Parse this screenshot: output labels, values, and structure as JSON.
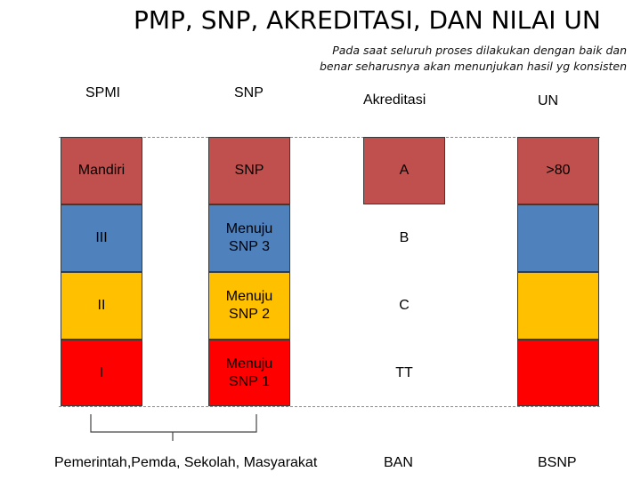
{
  "title": "PMP, SNP, AKREDITASI, DAN NILAI UN",
  "subtitle_line1": "Pada saat seluruh proses dilakukan dengan baik dan",
  "subtitle_line2": "benar seharusnya akan menunjukan hasil yg konsisten",
  "headers": {
    "spmi": "SPMI",
    "snp": "SNP",
    "akreditasi": "Akreditasi",
    "un": "UN"
  },
  "spmi": [
    "Mandiri",
    "III",
    "II",
    "I"
  ],
  "snp": [
    "SNP",
    "Menuju SNP 3",
    "Menuju SNP 2",
    "Menuju SNP 1"
  ],
  "akreditasi": [
    "A",
    "B",
    "C",
    "TT"
  ],
  "un": [
    ">80",
    "",
    "",
    ""
  ],
  "footer": {
    "stakeholders": "Pemerintah,Pemda, Sekolah, Masyarakat",
    "ban": "BAN",
    "bsnp": "BSNP"
  },
  "colors": {
    "level_top": "#c0504d",
    "level_3": "#4f81bd",
    "level_2": "#ffc000",
    "level_1": "#ff0000"
  }
}
